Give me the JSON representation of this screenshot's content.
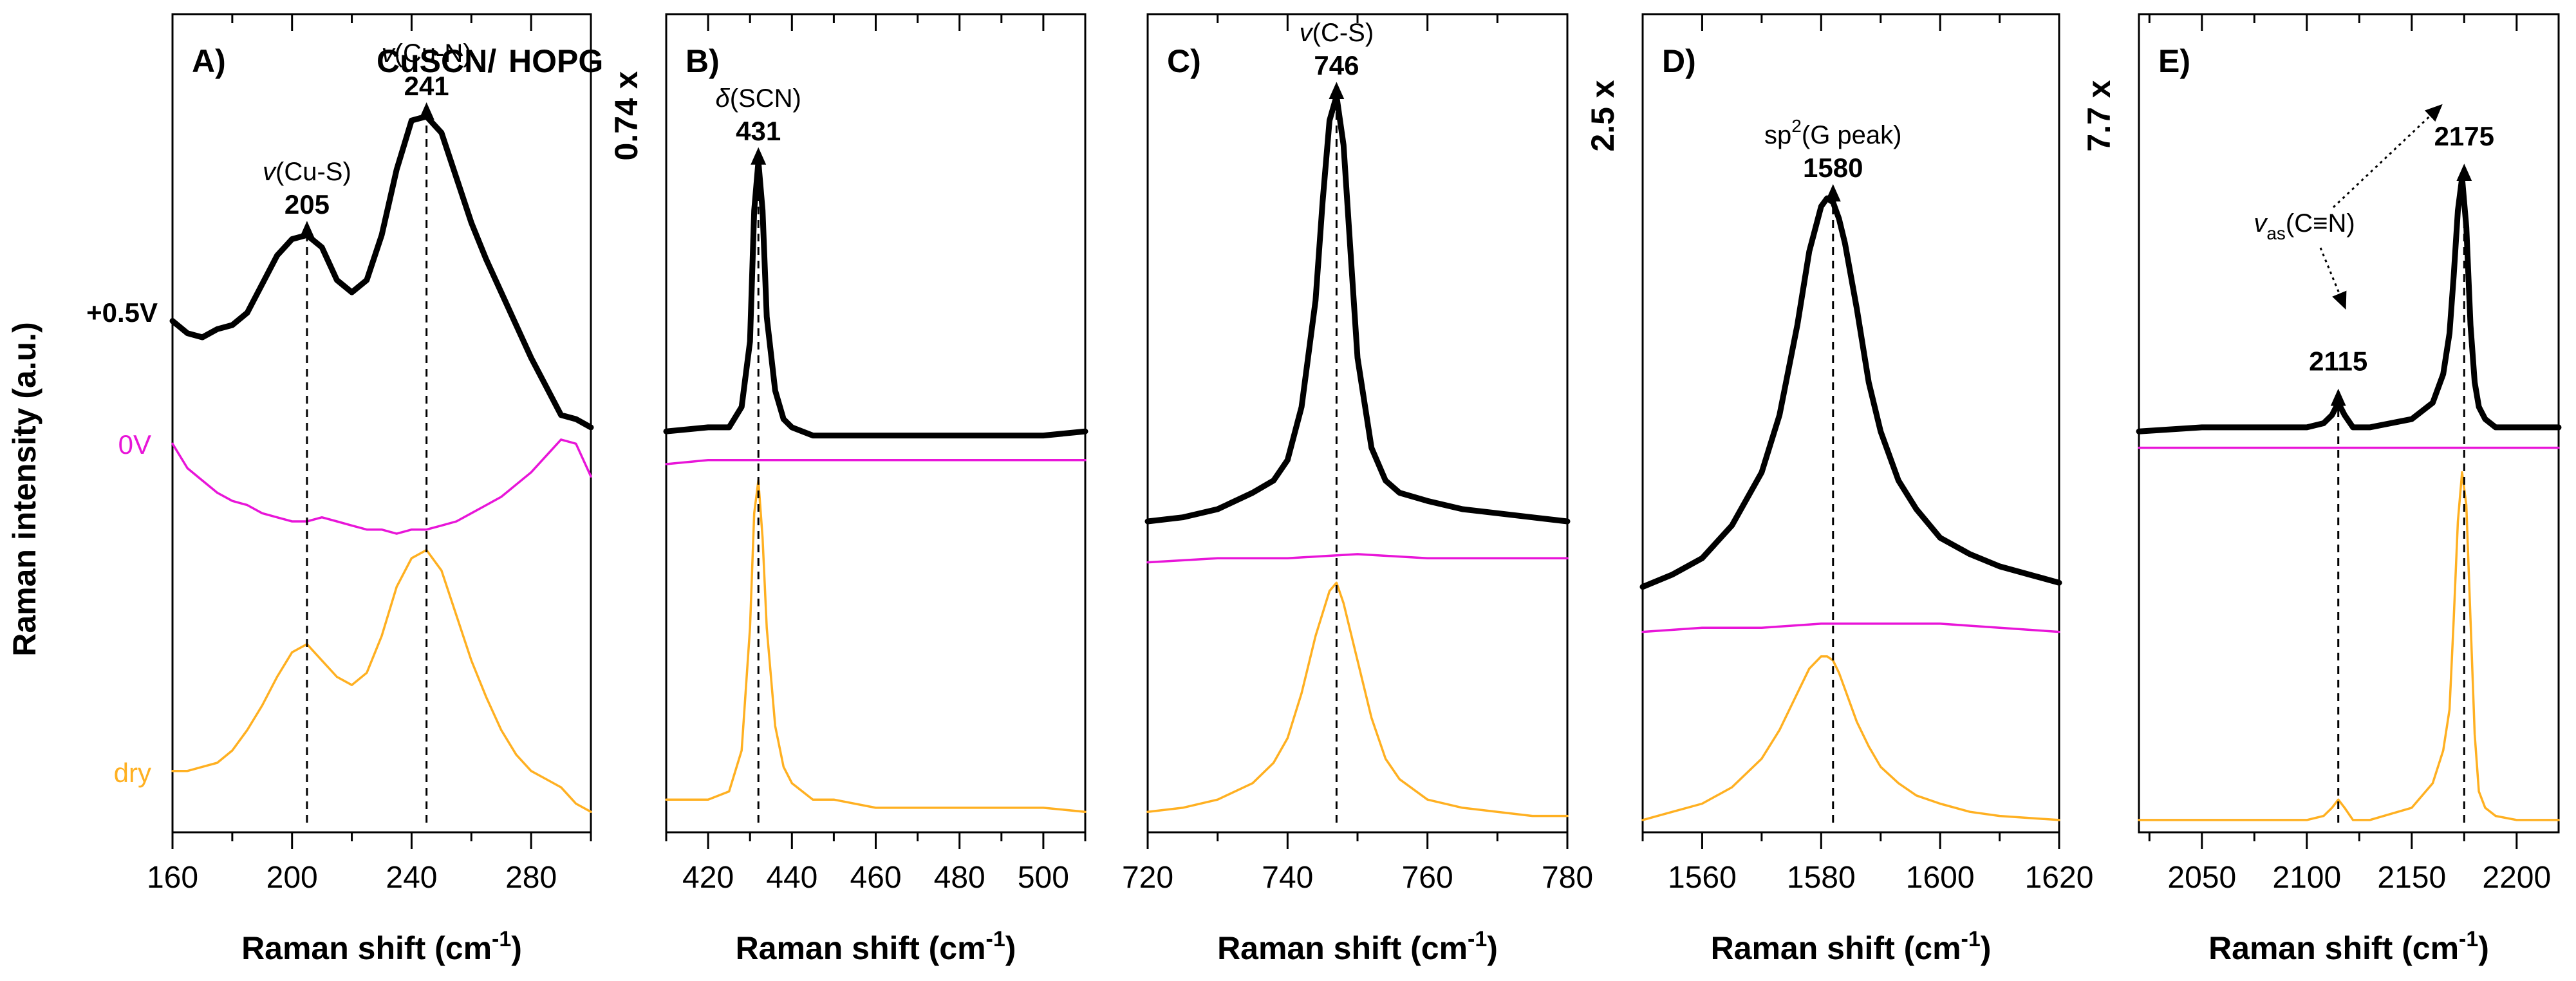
{
  "figure": {
    "ylabel": "Raman intensity (a.u.)",
    "xlabel_main": "Raman shift (cm",
    "xlabel_sup": "-1",
    "xlabel_end": ")"
  },
  "legend": {
    "title_black": "CuSCN/",
    "title_orange": "HOPG"
  },
  "trace_labels": {
    "black": "+0.5V",
    "magenta": "0V",
    "orange": "dry"
  },
  "colors": {
    "black": "#000000",
    "magenta": "#e815d8",
    "orange": "#ffb021",
    "arrow": "#000000"
  },
  "chart_data": [
    {
      "type": "line",
      "panel": "A)",
      "title": "CuSCN/HOPG",
      "xlabel": "Raman shift (cm-1)",
      "ylabel": "Raman intensity (a.u.)",
      "xlim": [
        160,
        300
      ],
      "ylim": [
        0,
        100
      ],
      "xticks": [
        160,
        200,
        240,
        280
      ],
      "xminor": 20,
      "scale_factor": "",
      "series": [
        {
          "name": "+0.5V",
          "color": "black",
          "x": [
            160,
            165,
            170,
            175,
            180,
            185,
            190,
            195,
            200,
            205,
            210,
            215,
            220,
            225,
            230,
            235,
            240,
            245,
            250,
            255,
            260,
            265,
            270,
            275,
            280,
            285,
            290,
            295,
            300
          ],
          "y": [
            62.5,
            61,
            60.5,
            61.5,
            62,
            63.5,
            67,
            70.5,
            72.5,
            73,
            71.5,
            67.5,
            66,
            67.5,
            73,
            81,
            87,
            87.5,
            85.5,
            80,
            74.5,
            70,
            66,
            62,
            58,
            54.5,
            51,
            50.5,
            49.5
          ]
        },
        {
          "name": "0V",
          "color": "magenta",
          "x": [
            160,
            165,
            170,
            175,
            180,
            185,
            190,
            195,
            200,
            205,
            210,
            215,
            220,
            225,
            230,
            235,
            240,
            245,
            250,
            255,
            260,
            265,
            270,
            275,
            280,
            285,
            290,
            295,
            300
          ],
          "y": [
            47.5,
            44.5,
            43,
            41.5,
            40.5,
            40,
            39,
            38.5,
            38,
            38,
            38.5,
            38,
            37.5,
            37,
            37,
            36.5,
            37,
            37,
            37.5,
            38,
            39,
            40,
            41,
            42.5,
            44,
            46,
            48,
            47.5,
            43.5
          ]
        },
        {
          "name": "dry",
          "color": "orange",
          "x": [
            160,
            165,
            170,
            175,
            180,
            185,
            190,
            195,
            200,
            205,
            210,
            215,
            220,
            225,
            230,
            235,
            240,
            245,
            250,
            255,
            260,
            265,
            270,
            275,
            280,
            285,
            290,
            295,
            300
          ],
          "y": [
            7.5,
            7.5,
            8,
            8.5,
            10,
            12.5,
            15.5,
            19,
            22,
            23,
            21,
            19,
            18,
            19.5,
            24,
            30,
            33.5,
            34.5,
            32,
            26.5,
            21,
            16.5,
            12.5,
            9.5,
            7.5,
            6.5,
            5.5,
            3.5,
            2.5
          ]
        }
      ],
      "annotations": [
        {
          "x": 205,
          "mode": "v",
          "label": "(Cu-S)",
          "value": "205"
        },
        {
          "x": 245,
          "mode": "v",
          "label": "(Cu-N)",
          "value": "241"
        }
      ]
    },
    {
      "type": "line",
      "panel": "B)",
      "xlabel": "Raman shift (cm-1)",
      "xlim": [
        410,
        510
      ],
      "ylim": [
        0,
        100
      ],
      "xticks": [
        420,
        440,
        460,
        480,
        500
      ],
      "xminor": 10,
      "scale_factor": "0.74 x",
      "series": [
        {
          "name": "+0.5V",
          "color": "black",
          "x": [
            410,
            420,
            425,
            428,
            430,
            431,
            432,
            433,
            434,
            436,
            438,
            440,
            445,
            450,
            460,
            470,
            480,
            490,
            500,
            510
          ],
          "y": [
            49,
            49.5,
            49.5,
            52,
            60,
            76,
            82,
            76,
            63,
            54,
            50.5,
            49.5,
            48.5,
            48.5,
            48.5,
            48.5,
            48.5,
            48.5,
            48.5,
            49
          ]
        },
        {
          "name": "0V",
          "color": "magenta",
          "x": [
            410,
            420,
            430,
            440,
            450,
            460,
            470,
            480,
            490,
            500,
            510
          ],
          "y": [
            45,
            45.5,
            45.5,
            45.5,
            45.5,
            45.5,
            45.5,
            45.5,
            45.5,
            45.5,
            45.5
          ]
        },
        {
          "name": "dry",
          "color": "orange",
          "x": [
            410,
            420,
            425,
            428,
            430,
            431,
            432,
            433,
            434,
            436,
            438,
            440,
            445,
            450,
            460,
            470,
            480,
            490,
            500,
            510
          ],
          "y": [
            4,
            4,
            5,
            10,
            25,
            39,
            43,
            36,
            25,
            13,
            8,
            6,
            4,
            4,
            3,
            3,
            3,
            3,
            3,
            2.5
          ]
        }
      ],
      "annotations": [
        {
          "x": 432,
          "mode": "delta",
          "label": "(SCN)",
          "value": "431"
        }
      ]
    },
    {
      "type": "line",
      "panel": "C)",
      "xlabel": "Raman shift (cm-1)",
      "xlim": [
        720,
        780
      ],
      "ylim": [
        0,
        100
      ],
      "xticks": [
        720,
        740,
        760,
        780
      ],
      "xminor": 10,
      "scale_factor": "",
      "series": [
        {
          "name": "+0.5V",
          "color": "black",
          "x": [
            720,
            725,
            730,
            735,
            738,
            740,
            742,
            744,
            745,
            746,
            747,
            748,
            749,
            750,
            752,
            754,
            756,
            760,
            765,
            770,
            775,
            780
          ],
          "y": [
            38,
            38.5,
            39.5,
            41.5,
            43,
            45.5,
            52,
            65,
            77,
            87,
            90,
            84,
            71,
            58,
            47,
            43,
            41.5,
            40.5,
            39.5,
            39,
            38.5,
            38
          ]
        },
        {
          "name": "0V",
          "color": "magenta",
          "x": [
            720,
            730,
            740,
            750,
            760,
            770,
            780
          ],
          "y": [
            33,
            33.5,
            33.5,
            34,
            33.5,
            33.5,
            33.5
          ]
        },
        {
          "name": "dry",
          "color": "orange",
          "x": [
            720,
            725,
            730,
            735,
            738,
            740,
            742,
            744,
            746,
            747,
            748,
            750,
            752,
            754,
            756,
            760,
            765,
            770,
            775,
            780
          ],
          "y": [
            2.5,
            3,
            4,
            6,
            8.5,
            11.5,
            17,
            24,
            29.5,
            30.5,
            28,
            21,
            14,
            9,
            6.5,
            4,
            3,
            2.5,
            2,
            2
          ]
        }
      ],
      "annotations": [
        {
          "x": 747,
          "mode": "v",
          "label": "(C-S)",
          "value": "746"
        }
      ]
    },
    {
      "type": "line",
      "panel": "D)",
      "xlabel": "Raman shift (cm-1)",
      "xlim": [
        1550,
        1620
      ],
      "ylim": [
        0,
        100
      ],
      "xticks": [
        1560,
        1580,
        1600,
        1620
      ],
      "xminor": 10,
      "scale_factor": "2.5 x",
      "series": [
        {
          "name": "+0.5V",
          "color": "black",
          "x": [
            1550,
            1555,
            1560,
            1565,
            1570,
            1573,
            1576,
            1578,
            1580,
            1581,
            1582,
            1583,
            1584,
            1586,
            1588,
            1590,
            1593,
            1596,
            1600,
            1605,
            1610,
            1615,
            1620
          ],
          "y": [
            30,
            31.5,
            33.5,
            37.5,
            44,
            51,
            62,
            71,
            76.5,
            77.5,
            77,
            75,
            72,
            64,
            55,
            49,
            43,
            39.5,
            36,
            34,
            32.5,
            31.5,
            30.5
          ]
        },
        {
          "name": "0V",
          "color": "magenta",
          "x": [
            1550,
            1560,
            1570,
            1580,
            1590,
            1600,
            1610,
            1620
          ],
          "y": [
            24.5,
            25,
            25,
            25.5,
            25.5,
            25.5,
            25,
            24.5
          ]
        },
        {
          "name": "dry",
          "color": "orange",
          "x": [
            1550,
            1555,
            1560,
            1565,
            1570,
            1573,
            1576,
            1578,
            1580,
            1581,
            1582,
            1583,
            1584,
            1586,
            1588,
            1590,
            1593,
            1596,
            1600,
            1605,
            1610,
            1620
          ],
          "y": [
            1.5,
            2.5,
            3.5,
            5.5,
            9,
            12.5,
            17,
            20,
            21.5,
            21.5,
            21,
            19.5,
            17.5,
            13.5,
            10.5,
            8,
            6,
            4.5,
            3.5,
            2.5,
            2,
            1.5
          ]
        }
      ],
      "annotations": [
        {
          "x": 1582,
          "mode": "sp2",
          "label": "(G peak)",
          "value": "1580"
        }
      ]
    },
    {
      "type": "line",
      "panel": "E)",
      "xlabel": "Raman shift (cm-1)",
      "xlim": [
        2020,
        2220
      ],
      "ylim": [
        0,
        100
      ],
      "xticks": [
        2050,
        2100,
        2150,
        2200
      ],
      "xminor": 25,
      "scale_factor": "7.7 x",
      "series": [
        {
          "name": "+0.5V",
          "color": "black",
          "x": [
            2020,
            2050,
            2080,
            2100,
            2108,
            2112,
            2115,
            2118,
            2122,
            2130,
            2150,
            2160,
            2165,
            2168,
            2170,
            2172,
            2174,
            2176,
            2178,
            2180,
            2182,
            2185,
            2190,
            2200,
            2210,
            2220
          ],
          "y": [
            49,
            49.5,
            49.5,
            49.5,
            50,
            51,
            52.5,
            51,
            49.5,
            49.5,
            50.5,
            52.5,
            56,
            61,
            68,
            76,
            80,
            74,
            62,
            55,
            52,
            50.5,
            49.5,
            49.5,
            49.5,
            49.5
          ]
        },
        {
          "name": "0V",
          "color": "magenta",
          "x": [
            2020,
            2060,
            2100,
            2140,
            2180,
            2220
          ],
          "y": [
            47,
            47,
            47,
            47,
            47,
            47
          ]
        },
        {
          "name": "dry",
          "color": "orange",
          "x": [
            2020,
            2050,
            2080,
            2100,
            2108,
            2112,
            2115,
            2118,
            2122,
            2130,
            2150,
            2160,
            2165,
            2168,
            2170,
            2172,
            2174,
            2176,
            2178,
            2180,
            2182,
            2185,
            2190,
            2200,
            2210,
            2220
          ],
          "y": [
            1.5,
            1.5,
            1.5,
            1.5,
            2,
            3,
            4,
            3,
            1.5,
            1.5,
            3,
            6,
            10,
            15,
            26,
            38,
            44,
            40,
            26,
            12,
            5,
            3,
            2,
            1.5,
            1.5,
            1.5
          ]
        }
      ],
      "annotations": [
        {
          "x": 2115,
          "mode": "vertical-only",
          "label": "",
          "value": "2115"
        },
        {
          "x": 2175,
          "mode": "vertical-only",
          "label": "",
          "value": "2175"
        },
        {
          "x": 2115,
          "mode": "vas",
          "label": "as",
          "value": "(C≡N)"
        }
      ]
    }
  ]
}
